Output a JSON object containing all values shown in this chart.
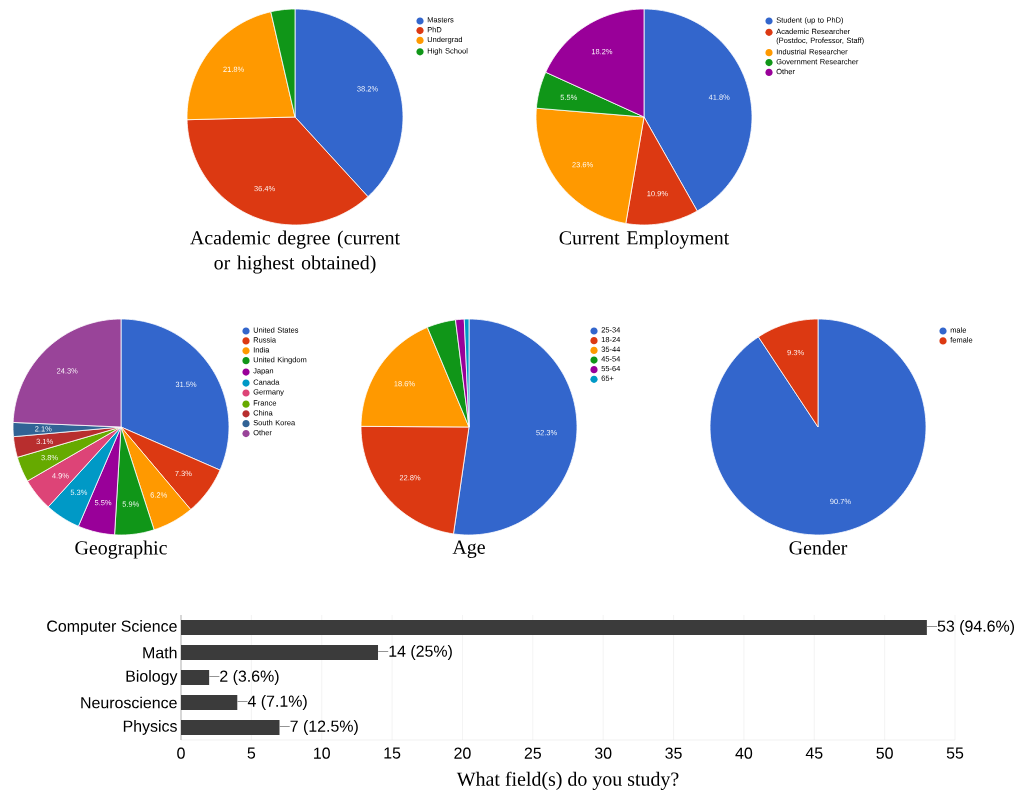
{
  "chart_data": [
    {
      "type": "pie",
      "title": "Academic degree (current or highest obtained)",
      "categories": [
        "Masters",
        "PhD",
        "Undergrad",
        "High School"
      ],
      "values": [
        38.2,
        36.4,
        21.8,
        3.6
      ],
      "colors": [
        "#3366cc",
        "#dc3912",
        "#ff9900",
        "#109618"
      ],
      "value_labels": [
        "38.2%",
        "36.4%",
        "21.8%",
        null
      ],
      "legend": "top right"
    },
    {
      "type": "pie",
      "title": "Current Employment",
      "categories": [
        "Student (up to PhD)",
        "Academic Researcher (Postdoc, Professor, Staff)",
        "Industrial Researcher",
        "Government Researcher",
        "Other"
      ],
      "values": [
        41.8,
        10.9,
        23.6,
        5.5,
        18.2
      ],
      "colors": [
        "#3366cc",
        "#dc3912",
        "#ff9900",
        "#109618",
        "#990099"
      ],
      "value_labels": [
        "41.8%",
        "10.9%",
        "23.6%",
        "5.5%",
        "18.2%"
      ],
      "legend": "top right"
    },
    {
      "type": "pie",
      "title": "Geographic",
      "categories": [
        "United States",
        "Russia",
        "India",
        "United Kingdom",
        "Japan",
        "Canada",
        "Germany",
        "France",
        "China",
        "South Korea",
        "Other"
      ],
      "values": [
        31.5,
        7.3,
        6.2,
        5.9,
        5.5,
        5.3,
        4.9,
        3.8,
        3.1,
        2.1,
        24.3
      ],
      "colors": [
        "#3366cc",
        "#dc3912",
        "#ff9900",
        "#109618",
        "#990099",
        "#0099c6",
        "#dd4477",
        "#66aa00",
        "#b82e2e",
        "#316395",
        "#994499"
      ],
      "value_labels": [
        "31.5%",
        "7.3%",
        "6.2%",
        "5.9%",
        "5.5%",
        "5.3%",
        "4.9%",
        "3.8%",
        "3.1%",
        "2.1%",
        "24.3%"
      ],
      "legend": "top right"
    },
    {
      "type": "pie",
      "title": "Age",
      "categories": [
        "25-34",
        "18-24",
        "35-44",
        "45-54",
        "55-64",
        "65+"
      ],
      "values": [
        52.3,
        22.8,
        18.6,
        4.3,
        1.3,
        0.7
      ],
      "colors": [
        "#3366cc",
        "#dc3912",
        "#ff9900",
        "#109618",
        "#990099",
        "#0099c6"
      ],
      "value_labels": [
        "52.3%",
        "22.8%",
        "18.6%",
        null,
        null,
        null
      ],
      "legend": "top right"
    },
    {
      "type": "pie",
      "title": "Gender",
      "categories": [
        "male",
        "female"
      ],
      "values": [
        90.7,
        9.3
      ],
      "colors": [
        "#3366cc",
        "#dc3912"
      ],
      "value_labels": [
        "90.7%",
        "9.3%"
      ],
      "legend": "top right"
    },
    {
      "type": "bar",
      "orientation": "horizontal",
      "xlabel": "What field(s) do you study?",
      "categories": [
        "Computer Science",
        "Math",
        "Biology",
        "Neuroscience",
        "Physics"
      ],
      "values": [
        53,
        14,
        2,
        4,
        7
      ],
      "color": "#3b3b3b",
      "value_labels": [
        "53 (94.6%)",
        "14 (25%)",
        "2 (3.6%)",
        "4 (7.1%)",
        "7 (12.5%)"
      ],
      "xlim": [
        0,
        55
      ],
      "xticks": [
        0,
        5,
        10,
        15,
        20,
        25,
        30,
        35,
        40,
        45,
        50,
        55
      ],
      "grid": "x"
    }
  ]
}
